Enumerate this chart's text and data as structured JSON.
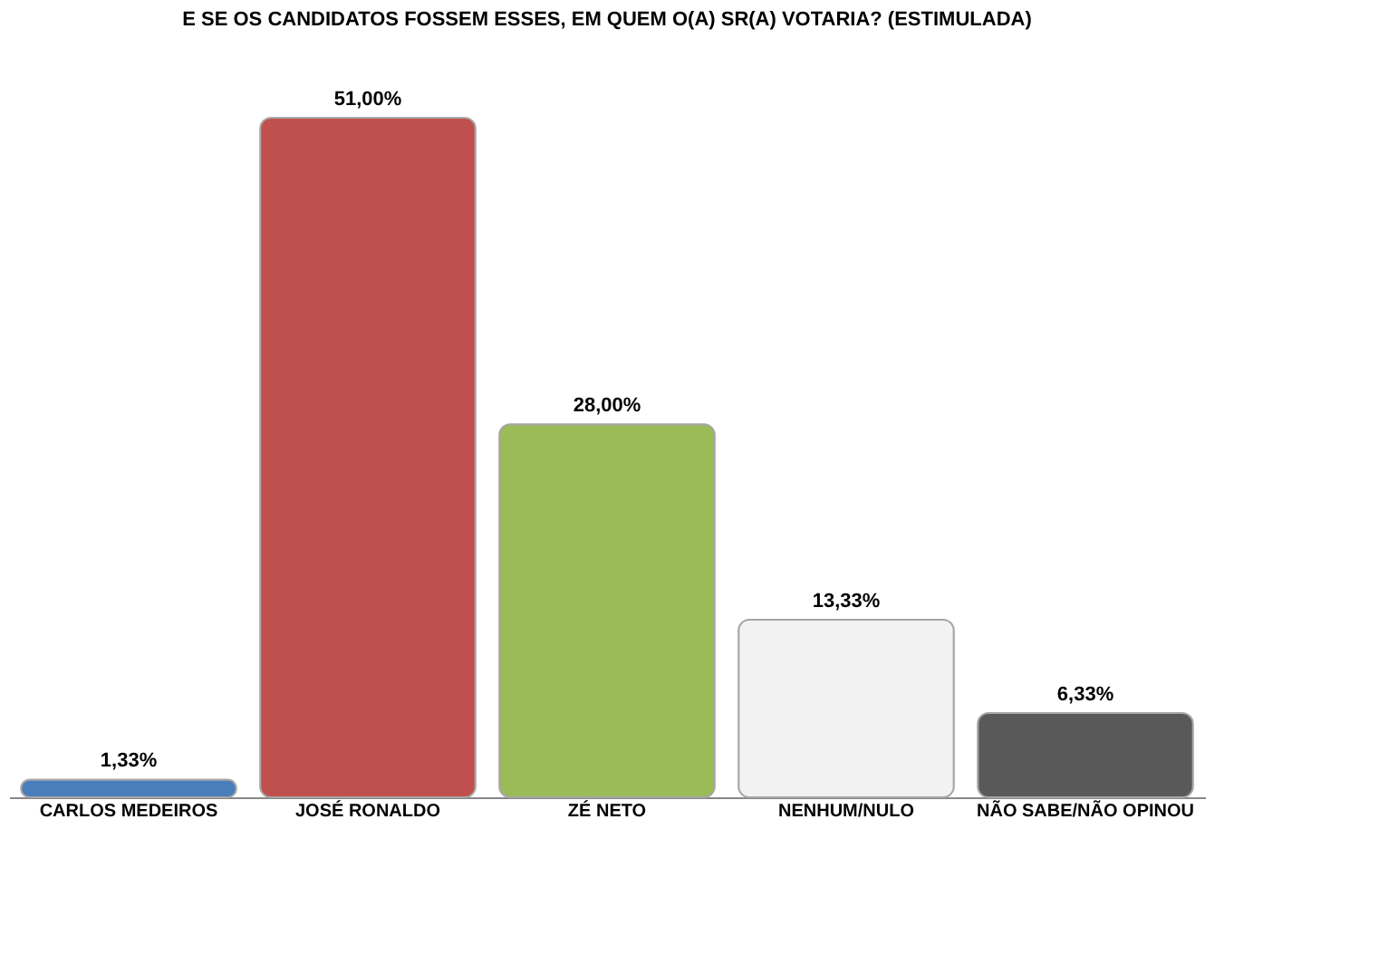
{
  "chart_data": {
    "type": "bar",
    "title": "E SE OS CANDIDATOS FOSSEM ESSES, EM QUEM O(A) SR(A) VOTARIA? (ESTIMULADA)",
    "categories": [
      "CARLOS MEDEIROS",
      "JOSÉ RONALDO",
      "ZÉ NETO",
      "NENHUM/NULO",
      "NÃO SABE/NÃO OPINOU"
    ],
    "values": [
      1.33,
      51,
      28,
      13.33,
      6.33
    ],
    "colors": [
      "#4a7ebb",
      "#c0504d",
      "#9bbb59",
      "#f2f2f2",
      "#595959"
    ],
    "value_labels": [
      "1,33%",
      "51,00%",
      "28,00%",
      "13,33%",
      "6,33%"
    ],
    "grid": false
  }
}
